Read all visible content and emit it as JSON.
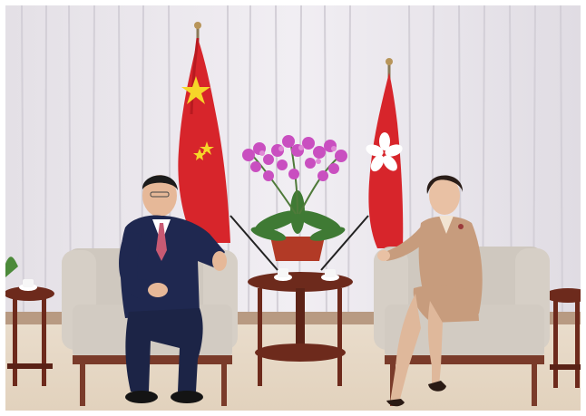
{
  "photo": {
    "subject": "meeting-room-two-people-seated",
    "colors": {
      "curtain": "#ece9ee",
      "curtain_fold": "#d9d5dc",
      "carpet": "#e7d8c6",
      "chair": "#cfc8bf",
      "chair_wood": "#7a3b2a",
      "table_wood": "#6d2a1c",
      "flag_red": "#d7252b",
      "flag_star": "#f6d629",
      "suit_navy": "#1f2850",
      "suit_beige": "#c79c7d",
      "orchid": "#c94fc0",
      "leaves": "#3f7a34"
    },
    "icons": [
      "flag-prc-icon",
      "flag-hksar-icon"
    ]
  }
}
